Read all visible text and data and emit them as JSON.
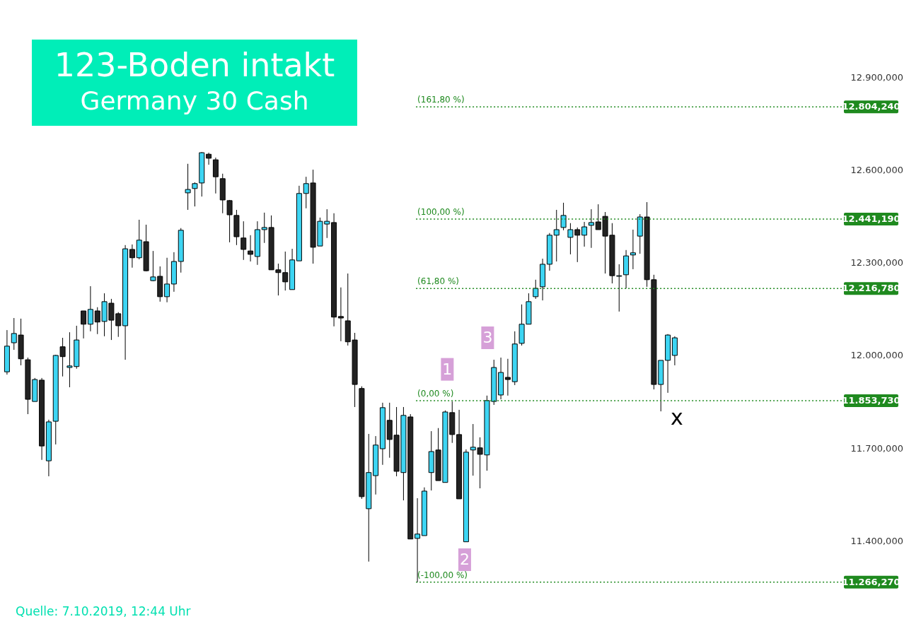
{
  "chart_data": {
    "type": "candlestick",
    "title": "123-Boden intakt",
    "subtitle": "Germany 30 Cash",
    "categories": [
      null,
      null,
      null,
      null,
      null,
      null,
      null,
      null,
      null,
      null,
      null,
      null,
      null,
      null,
      null,
      null,
      null,
      null,
      null,
      null,
      null,
      null,
      null,
      null,
      null,
      null,
      null,
      null,
      null,
      null,
      null,
      null,
      null,
      null,
      null,
      null,
      null,
      null,
      null,
      null,
      null,
      null,
      null,
      null,
      null,
      null,
      null,
      null,
      null,
      null,
      null,
      null,
      null,
      null,
      null,
      null,
      null,
      null,
      null,
      null,
      null,
      null,
      null,
      null,
      null,
      null,
      null,
      null,
      null,
      null,
      null,
      null,
      null,
      null,
      null,
      null,
      null,
      null,
      null,
      null,
      null,
      null,
      null,
      null,
      null,
      null,
      null,
      null,
      null,
      null,
      null,
      null,
      null,
      null,
      null,
      null,
      null,
      null,
      null,
      null,
      null,
      null,
      null,
      null,
      null,
      null,
      null,
      null,
      null,
      null,
      null,
      null,
      null,
      null,
      null,
      null,
      null,
      null,
      null,
      null
    ],
    "ohlc": [
      [
        11947,
        12082,
        11938,
        12030
      ],
      [
        12041,
        12121,
        12018,
        12071
      ],
      [
        12066,
        12119,
        11968,
        11989
      ],
      [
        11986,
        11993,
        11810,
        11858
      ],
      [
        11851,
        11927,
        11851,
        11922
      ],
      [
        11920,
        11927,
        11662,
        11707
      ],
      [
        11659,
        11792,
        11609,
        11785
      ],
      [
        11787,
        12002,
        11712,
        12000
      ],
      [
        12028,
        12057,
        11932,
        11996
      ],
      [
        11961,
        12075,
        11897,
        11966
      ],
      [
        11964,
        12096,
        11957,
        12050
      ],
      [
        12144,
        12144,
        12055,
        12101
      ],
      [
        12101,
        12224,
        12078,
        12149
      ],
      [
        12144,
        12156,
        12069,
        12108
      ],
      [
        12110,
        12201,
        12062,
        12174
      ],
      [
        12169,
        12183,
        12050,
        12114
      ],
      [
        12135,
        12140,
        12060,
        12096
      ],
      [
        12096,
        12357,
        11986,
        12345
      ],
      [
        12343,
        12359,
        12284,
        12316
      ],
      [
        12316,
        12439,
        12311,
        12373
      ],
      [
        12368,
        12423,
        12272,
        12274
      ],
      [
        12242,
        12338,
        12240,
        12254
      ],
      [
        12256,
        12288,
        12174,
        12190
      ],
      [
        12190,
        12316,
        12172,
        12231
      ],
      [
        12231,
        12334,
        12206,
        12304
      ],
      [
        12304,
        12412,
        12268,
        12405
      ],
      [
        12526,
        12620,
        12471,
        12537
      ],
      [
        12540,
        12560,
        12482,
        12556
      ],
      [
        12558,
        12658,
        12514,
        12656
      ],
      [
        12651,
        12656,
        12617,
        12638
      ],
      [
        12633,
        12640,
        12524,
        12578
      ],
      [
        12572,
        12588,
        12460,
        12503
      ],
      [
        12501,
        12503,
        12366,
        12455
      ],
      [
        12453,
        12471,
        12357,
        12384
      ],
      [
        12380,
        12434,
        12309,
        12343
      ],
      [
        12338,
        12389,
        12304,
        12327
      ],
      [
        12320,
        12434,
        12293,
        12407
      ],
      [
        12407,
        12462,
        12364,
        12414
      ],
      [
        12414,
        12453,
        12277,
        12277
      ],
      [
        12277,
        12297,
        12194,
        12268
      ],
      [
        12268,
        12336,
        12210,
        12238
      ],
      [
        12213,
        12345,
        12213,
        12309
      ],
      [
        12306,
        12549,
        12306,
        12524
      ],
      [
        12524,
        12578,
        12476,
        12556
      ],
      [
        12558,
        12601,
        12297,
        12350
      ],
      [
        12354,
        12446,
        12354,
        12434
      ],
      [
        12425,
        12473,
        12380,
        12434
      ],
      [
        12430,
        12460,
        12094,
        12124
      ],
      [
        12126,
        12220,
        12046,
        12121
      ],
      [
        12112,
        12265,
        12032,
        12044
      ],
      [
        12050,
        12073,
        11833,
        11906
      ],
      [
        11893,
        11900,
        11536,
        11543
      ],
      [
        11504,
        11746,
        11333,
        11621
      ],
      [
        11611,
        11739,
        11550,
        11710
      ],
      [
        11698,
        11847,
        11646,
        11831
      ],
      [
        11790,
        11847,
        11669,
        11728
      ],
      [
        11742,
        11833,
        11609,
        11625
      ],
      [
        11621,
        11833,
        11531,
        11806
      ],
      [
        11801,
        11810,
        11406,
        11406
      ],
      [
        11408,
        11538,
        11266,
        11422
      ],
      [
        11417,
        11573,
        11417,
        11561
      ],
      [
        11621,
        11755,
        11563,
        11689
      ],
      [
        11694,
        11765,
        11595,
        11595
      ],
      [
        11589,
        11822,
        11589,
        11817
      ],
      [
        11815,
        11851,
        11717,
        11744
      ],
      [
        11744,
        11824,
        11536,
        11536
      ],
      [
        11397,
        11696,
        11397,
        11687
      ],
      [
        11694,
        11778,
        11611,
        11703
      ],
      [
        11701,
        11735,
        11570,
        11680
      ],
      [
        11678,
        11870,
        11627,
        11854
      ],
      [
        11851,
        11986,
        11840,
        11961
      ],
      [
        11872,
        11993,
        11858,
        11945
      ],
      [
        11929,
        11989,
        11870,
        11922
      ],
      [
        11915,
        12078,
        11904,
        12037
      ],
      [
        12039,
        12165,
        12032,
        12101
      ],
      [
        12101,
        12201,
        12101,
        12174
      ],
      [
        12190,
        12245,
        12183,
        12217
      ],
      [
        12222,
        12313,
        12178,
        12295
      ],
      [
        12295,
        12396,
        12274,
        12389
      ],
      [
        12389,
        12471,
        12304,
        12407
      ],
      [
        12414,
        12494,
        12405,
        12453
      ],
      [
        12382,
        12428,
        12327,
        12407
      ],
      [
        12407,
        12414,
        12302,
        12389
      ],
      [
        12389,
        12432,
        12352,
        12416
      ],
      [
        12421,
        12473,
        12348,
        12430
      ],
      [
        12432,
        12489,
        12407,
        12407
      ],
      [
        12450,
        12464,
        12265,
        12386
      ],
      [
        12389,
        12428,
        12233,
        12258
      ],
      [
        12256,
        12295,
        12142,
        12258
      ],
      [
        12261,
        12341,
        12217,
        12322
      ],
      [
        12325,
        12407,
        12279,
        12332
      ],
      [
        12386,
        12457,
        12329,
        12448
      ],
      [
        12448,
        12496,
        12222,
        12245
      ],
      [
        12245,
        12261,
        11890,
        11906
      ],
      [
        11906,
        11984,
        11819,
        11984
      ],
      [
        11984,
        12069,
        11879,
        12066
      ],
      [
        12000,
        12062,
        11968,
        12057
      ],
      null,
      null,
      null,
      null,
      null,
      null,
      null,
      null,
      null,
      null,
      null,
      null,
      null,
      null,
      null,
      null,
      null,
      null,
      null,
      null,
      null,
      null,
      null
    ],
    "colors": [
      "#3dd5f3",
      "#3dd5f3",
      "#222222",
      "#222222",
      "#3dd5f3",
      "#222222",
      "#3dd5f3",
      "#3dd5f3",
      "#222222",
      "#3dd5f3",
      "#3dd5f3",
      "#222222",
      "#3dd5f3",
      "#222222",
      "#3dd5f3",
      "#222222",
      "#222222",
      "#3dd5f3",
      "#222222",
      "#3dd5f3",
      "#222222",
      "#3dd5f3",
      "#222222",
      "#3dd5f3",
      "#3dd5f3",
      "#3dd5f3",
      "#3dd5f3",
      "#3dd5f3",
      "#3dd5f3",
      "#222222",
      "#222222",
      "#222222",
      "#222222",
      "#222222",
      "#222222",
      "#222222",
      "#3dd5f3",
      "#3dd5f3",
      "#222222",
      "#222222",
      "#222222",
      "#3dd5f3",
      "#3dd5f3",
      "#3dd5f3",
      "#222222",
      "#3dd5f3",
      "#3dd5f3",
      "#222222",
      "#222222",
      "#222222",
      "#222222",
      "#222222",
      "#3dd5f3",
      "#3dd5f3",
      "#3dd5f3",
      "#222222",
      "#222222",
      "#3dd5f3",
      "#222222",
      "#3dd5f3",
      "#3dd5f3",
      "#3dd5f3",
      "#222222",
      "#3dd5f3",
      "#222222",
      "#222222",
      "#3dd5f3",
      "#3dd5f3",
      "#222222",
      "#3dd5f3",
      "#3dd5f3",
      "#3dd5f3",
      "#222222",
      "#3dd5f3",
      "#3dd5f3",
      "#3dd5f3",
      "#3dd5f3",
      "#3dd5f3",
      "#3dd5f3",
      "#3dd5f3",
      "#3dd5f3",
      "#3dd5f3",
      "#222222",
      "#3dd5f3",
      "#3dd5f3",
      "#222222",
      "#222222",
      "#222222",
      "#3dd5f3",
      "#3dd5f3",
      "#3dd5f3",
      "#3dd5f3",
      "#222222",
      "#222222",
      "#3dd5f3",
      "#3dd5f3",
      "#3dd5f3",
      null,
      null,
      null,
      null,
      null,
      null,
      null,
      null,
      null,
      null,
      null,
      null,
      null,
      null,
      null,
      null,
      null,
      null,
      null,
      null,
      null,
      null,
      null
    ],
    "ylim": [
      11131,
      13150
    ],
    "yticks": [
      {
        "value": 11400,
        "label": "11.400,000"
      },
      {
        "value": 11700,
        "label": "11.700,000"
      },
      {
        "value": 12000,
        "label": "12.000,000"
      },
      {
        "value": 12300,
        "label": "12.300,000"
      },
      {
        "value": 12600,
        "label": "12.600,000"
      },
      {
        "value": 12900,
        "label": "12.900,000"
      }
    ],
    "ref_lines": [
      {
        "axis": "y",
        "value": 12804.24,
        "label": "12.804,240",
        "color": "#1f8a1f",
        "line_style": "dotted"
      },
      {
        "axis": "y",
        "value": 12441.19,
        "label": "12.441,190",
        "color": "#1f8a1f",
        "line_style": "dotted"
      },
      {
        "axis": "y",
        "value": 12216.78,
        "label": "12.216,780",
        "color": "#1f8a1f",
        "line_style": "dotted"
      },
      {
        "axis": "y",
        "value": 11853.73,
        "label": "11.853,730",
        "color": "#1f8a1f",
        "line_style": "dotted"
      },
      {
        "axis": "y",
        "value": 11266.27,
        "label": "11.266,270",
        "color": "#1f8a1f",
        "line_style": "dotted"
      }
    ],
    "annotations": [
      {
        "text": "1",
        "y": 11955
      },
      {
        "text": "2",
        "y": 11339
      },
      {
        "text": "3",
        "y": 12057
      },
      {
        "text": "(161,80 %)",
        "y": 12804.24
      },
      {
        "text": "(100,00 %)",
        "y": 12441.19
      },
      {
        "text": "(61,80 %)",
        "y": 12216.78
      },
      {
        "text": "(0,00 %)",
        "y": 11853.73
      },
      {
        "text": "(-100,00 %)",
        "y": 11266.27
      },
      "x",
      "Quelle: 7.10.2019, 12:44 Uhr"
    ],
    "grid": false,
    "tick_labels": "y"
  }
}
